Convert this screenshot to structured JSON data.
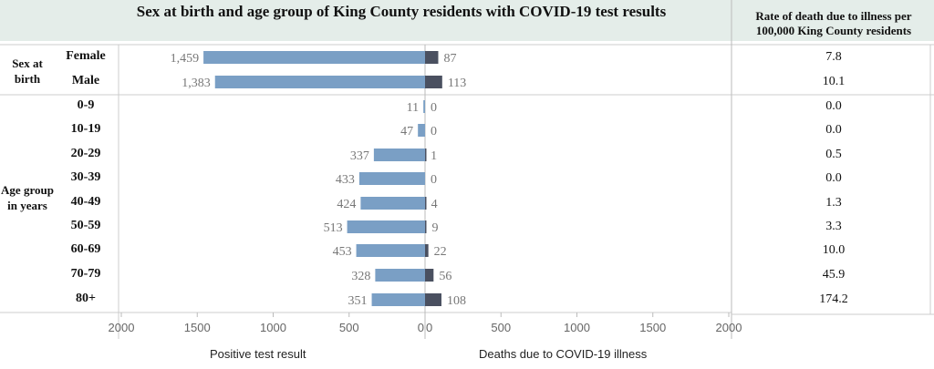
{
  "chart_data": {
    "type": "bar",
    "title": "Sex at birth and age group of King County residents with COVID-19 test results",
    "rate_column_title": "Rate of death due to illness per 100,000 King County residents",
    "groups": [
      {
        "label": "Sex at birth",
        "rows": [
          "Female",
          "Male"
        ]
      },
      {
        "label": "Age group in years",
        "rows": [
          "0-9",
          "10-19",
          "20-29",
          "30-39",
          "40-49",
          "50-59",
          "60-69",
          "70-79",
          "80+"
        ]
      }
    ],
    "categories": [
      "Female",
      "Male",
      "0-9",
      "10-19",
      "20-29",
      "30-39",
      "40-49",
      "50-59",
      "60-69",
      "70-79",
      "80+"
    ],
    "series": [
      {
        "name": "Positive test result",
        "values": [
          1459,
          1383,
          11,
          47,
          337,
          433,
          424,
          513,
          453,
          328,
          351
        ],
        "labels": [
          "1,459",
          "1,383",
          "11",
          "47",
          "337",
          "433",
          "424",
          "513",
          "453",
          "328",
          "351"
        ],
        "color": "#7a9fc5"
      },
      {
        "name": "Deaths due to COVID-19 illness",
        "values": [
          87,
          113,
          0,
          0,
          1,
          0,
          4,
          9,
          22,
          56,
          108
        ],
        "labels": [
          "87",
          "113",
          "0",
          "0",
          "1",
          "0",
          "4",
          "9",
          "22",
          "56",
          "108"
        ],
        "color": "#4a5060"
      }
    ],
    "rates": [
      "7.8",
      "10.1",
      "0.0",
      "0.0",
      "0.5",
      "0.0",
      "1.3",
      "3.3",
      "10.0",
      "45.9",
      "174.2"
    ],
    "left_axis": {
      "ticks": [
        "2000",
        "1500",
        "1000",
        "500",
        "0"
      ],
      "range": [
        0,
        2000
      ]
    },
    "right_axis": {
      "ticks": [
        "0",
        "500",
        "1000",
        "1500",
        "2000"
      ],
      "range": [
        0,
        2000
      ]
    }
  }
}
